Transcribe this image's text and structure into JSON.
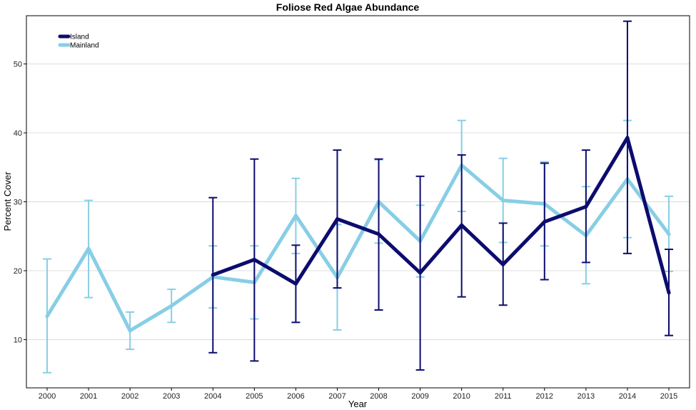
{
  "chart_data": {
    "type": "line",
    "title": "Foliose Red Algae Abundance",
    "xlabel": "Year",
    "ylabel": "Percent Cover",
    "x": [
      2000,
      2001,
      2002,
      2003,
      2004,
      2005,
      2006,
      2007,
      2008,
      2009,
      2010,
      2011,
      2012,
      2013,
      2014,
      2015
    ],
    "x_tick_labels": [
      "2000",
      "2001",
      "2002",
      "2003",
      "2004",
      "2005",
      "2006",
      "2007",
      "2008",
      "2009",
      "2010",
      "2011",
      "2012",
      "2013",
      "2014",
      "2015"
    ],
    "y_ticks": [
      10,
      20,
      30,
      40,
      50
    ],
    "y_tick_labels": [
      "10",
      "20",
      "30",
      "40",
      "50"
    ],
    "ylim": [
      3,
      57
    ],
    "grid": "horizontal",
    "legend_position": "top-left",
    "series": [
      {
        "name": "Mainland",
        "color": "#87cee5",
        "x": [
          2000,
          2001,
          2002,
          2003,
          2004,
          2005,
          2006,
          2007,
          2008,
          2009,
          2010,
          2011,
          2012,
          2013,
          2014,
          2015
        ],
        "y": [
          13.4,
          23.2,
          11.3,
          14.9,
          19.1,
          18.3,
          28.0,
          19.0,
          30.0,
          24.3,
          35.3,
          30.2,
          29.7,
          25.1,
          33.3,
          25.3
        ],
        "lower": [
          5.2,
          16.1,
          8.6,
          12.5,
          14.6,
          13.0,
          22.5,
          11.4,
          24.0,
          19.1,
          28.6,
          24.1,
          23.6,
          18.1,
          24.8,
          19.9
        ],
        "upper": [
          21.7,
          30.2,
          14.0,
          17.3,
          23.6,
          23.6,
          33.4,
          26.7,
          36.1,
          29.5,
          41.8,
          36.3,
          35.8,
          32.2,
          41.8,
          30.8
        ]
      },
      {
        "name": "Island",
        "color": "#0c0c6e",
        "x": [
          2004,
          2005,
          2006,
          2007,
          2008,
          2009,
          2010,
          2011,
          2012,
          2013,
          2014,
          2015
        ],
        "y": [
          19.4,
          21.6,
          18.1,
          27.5,
          25.3,
          19.7,
          26.6,
          20.9,
          27.1,
          29.3,
          39.3,
          16.8
        ],
        "lower": [
          8.1,
          6.9,
          12.5,
          17.5,
          14.3,
          5.6,
          16.2,
          15.0,
          18.7,
          21.2,
          22.5,
          10.6
        ],
        "upper": [
          30.6,
          36.2,
          23.7,
          37.5,
          36.2,
          33.7,
          36.8,
          26.9,
          35.6,
          37.5,
          56.2,
          23.1
        ]
      }
    ]
  },
  "colors": {
    "grid": "#dcdcdc",
    "axis": "#000000",
    "background": "#ffffff"
  }
}
